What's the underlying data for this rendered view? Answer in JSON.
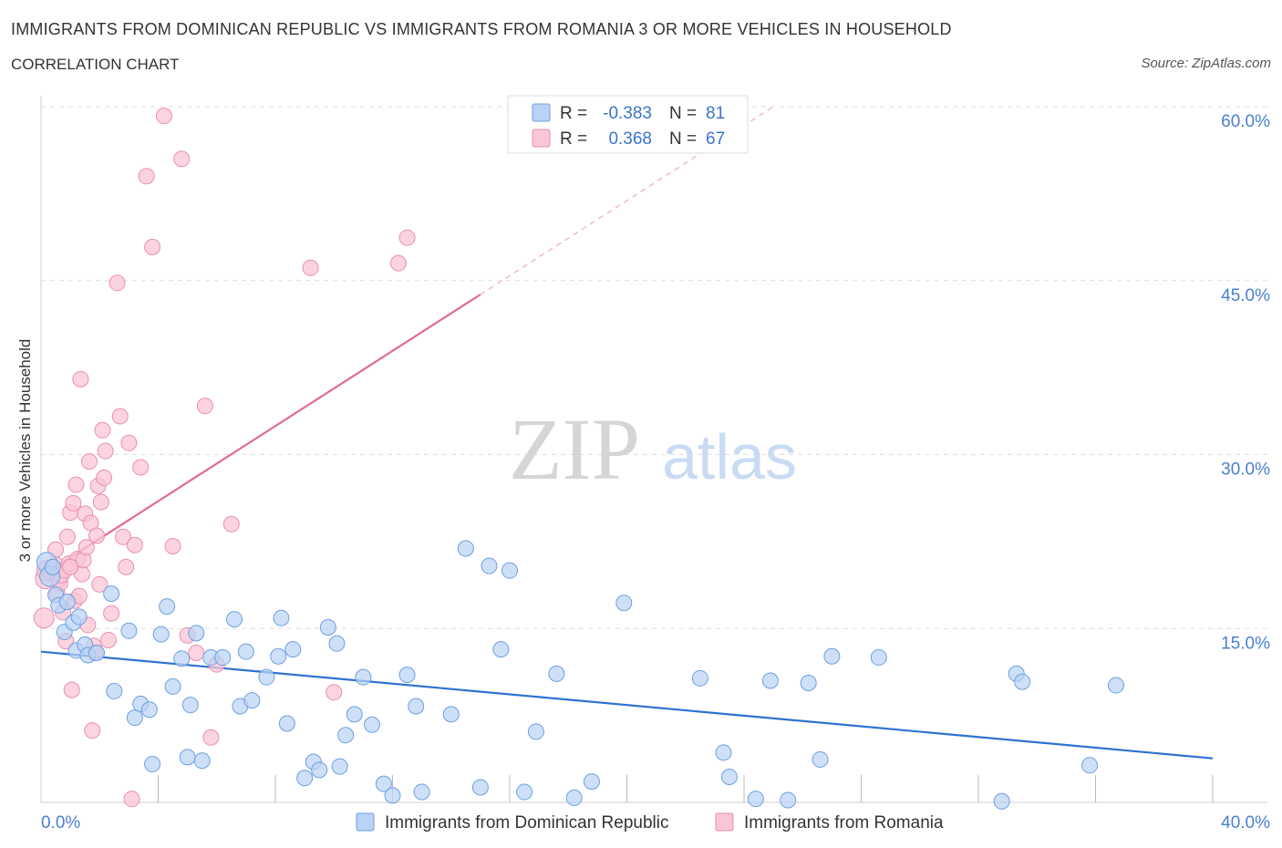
{
  "header": {
    "title": "IMMIGRANTS FROM DOMINICAN REPUBLIC VS IMMIGRANTS FROM ROMANIA 3 OR MORE VEHICLES IN HOUSEHOLD",
    "subtitle": "CORRELATION CHART",
    "source": "Source: ZipAtlas.com"
  },
  "watermark": {
    "zip": "ZIP",
    "atlas": "atlas"
  },
  "stats_legend": {
    "rows": [
      {
        "r_label": "R =",
        "r_value": "-0.383",
        "n_label": "N =",
        "n_value": "81"
      },
      {
        "r_label": "R =",
        "r_value": "0.368",
        "n_label": "N =",
        "n_value": "67"
      }
    ]
  },
  "colors": {
    "blue_fill": "#b8d3f5",
    "blue_stroke": "#6f9fe0",
    "blue_line": "#2f72d0",
    "pink_fill": "#f9c6d6",
    "pink_stroke": "#e98fb0",
    "pink_line": "#e06a94",
    "tick_label": "#4a7fd0",
    "grid": "#dddddd"
  },
  "chart_data": {
    "type": "scatter",
    "title": "IMMIGRANTS FROM DOMINICAN REPUBLIC VS IMMIGRANTS FROM ROMANIA 3 OR MORE VEHICLES IN HOUSEHOLD",
    "xlabel": "",
    "ylabel": "3 or more Vehicles in Household",
    "xlim": [
      0,
      40
    ],
    "ylim": [
      0,
      60
    ],
    "x_tick_labels": [
      "0.0%",
      "40.0%"
    ],
    "y_ticks": [
      15,
      30,
      45,
      60
    ],
    "y_tick_labels": [
      "15.0%",
      "30.0%",
      "45.0%",
      "60.0%"
    ],
    "grid": true,
    "legend_position": "bottom",
    "series": [
      {
        "name": "Immigrants from Dominican Republic",
        "color": "blue",
        "trend": {
          "x": [
            0,
            40
          ],
          "y": [
            13.0,
            3.8
          ]
        },
        "points": [
          [
            0.2,
            20.7
          ],
          [
            0.3,
            19.5
          ],
          [
            0.4,
            20.3
          ],
          [
            0.5,
            17.9
          ],
          [
            0.6,
            17.0
          ],
          [
            0.8,
            14.7
          ],
          [
            0.9,
            17.3
          ],
          [
            1.1,
            15.5
          ],
          [
            1.2,
            13.1
          ],
          [
            1.3,
            16.0
          ],
          [
            1.5,
            13.6
          ],
          [
            1.6,
            12.7
          ],
          [
            1.9,
            12.9
          ],
          [
            2.4,
            18.0
          ],
          [
            2.5,
            9.6
          ],
          [
            3.0,
            14.8
          ],
          [
            3.2,
            7.3
          ],
          [
            3.4,
            8.5
          ],
          [
            3.7,
            8.0
          ],
          [
            3.8,
            3.3
          ],
          [
            4.1,
            14.5
          ],
          [
            4.3,
            16.9
          ],
          [
            4.5,
            10.0
          ],
          [
            4.8,
            12.4
          ],
          [
            5.0,
            3.9
          ],
          [
            5.1,
            8.4
          ],
          [
            5.3,
            14.6
          ],
          [
            5.5,
            3.6
          ],
          [
            5.8,
            12.5
          ],
          [
            6.2,
            12.5
          ],
          [
            6.6,
            15.8
          ],
          [
            6.8,
            8.3
          ],
          [
            7.0,
            13.0
          ],
          [
            7.2,
            8.8
          ],
          [
            7.7,
            10.8
          ],
          [
            8.1,
            12.6
          ],
          [
            8.2,
            15.9
          ],
          [
            8.4,
            6.8
          ],
          [
            8.6,
            13.2
          ],
          [
            9.0,
            2.1
          ],
          [
            9.3,
            3.5
          ],
          [
            9.5,
            2.8
          ],
          [
            9.8,
            15.1
          ],
          [
            10.1,
            13.7
          ],
          [
            10.2,
            3.1
          ],
          [
            10.4,
            5.8
          ],
          [
            10.7,
            7.6
          ],
          [
            11.0,
            10.8
          ],
          [
            11.3,
            6.7
          ],
          [
            11.7,
            1.6
          ],
          [
            12.0,
            0.6
          ],
          [
            12.5,
            11.0
          ],
          [
            12.8,
            8.3
          ],
          [
            13.0,
            0.9
          ],
          [
            14.0,
            7.6
          ],
          [
            14.5,
            21.9
          ],
          [
            15.0,
            1.3
          ],
          [
            15.3,
            20.4
          ],
          [
            15.7,
            13.2
          ],
          [
            16.0,
            20.0
          ],
          [
            16.5,
            0.9
          ],
          [
            16.9,
            6.1
          ],
          [
            17.6,
            11.1
          ],
          [
            18.2,
            0.4
          ],
          [
            18.8,
            1.8
          ],
          [
            19.9,
            17.2
          ],
          [
            22.5,
            10.7
          ],
          [
            23.3,
            4.3
          ],
          [
            23.5,
            2.2
          ],
          [
            24.4,
            0.3
          ],
          [
            24.9,
            10.5
          ],
          [
            25.5,
            0.2
          ],
          [
            26.2,
            10.3
          ],
          [
            26.6,
            3.7
          ],
          [
            27.0,
            12.6
          ],
          [
            28.6,
            12.5
          ],
          [
            32.8,
            0.1
          ],
          [
            33.3,
            11.1
          ],
          [
            33.5,
            10.4
          ],
          [
            35.8,
            3.2
          ],
          [
            36.7,
            10.1
          ]
        ]
      },
      {
        "name": "Immigrants from Romania",
        "color": "pink",
        "trend": {
          "x": [
            0,
            15
          ],
          "y": [
            19.5,
            43.8
          ]
        },
        "trend_dashed": {
          "x": [
            15,
            25
          ],
          "y": [
            43.8,
            60
          ]
        },
        "points": [
          [
            0.1,
            15.9
          ],
          [
            0.15,
            19.3
          ],
          [
            0.2,
            20.0
          ],
          [
            0.3,
            19.9
          ],
          [
            0.4,
            20.2
          ],
          [
            0.5,
            20.5
          ],
          [
            0.5,
            21.8
          ],
          [
            0.55,
            18.0
          ],
          [
            0.6,
            19.2
          ],
          [
            0.65,
            18.9
          ],
          [
            0.7,
            19.6
          ],
          [
            0.75,
            16.4
          ],
          [
            0.8,
            20.0
          ],
          [
            0.85,
            13.9
          ],
          [
            0.9,
            22.9
          ],
          [
            0.95,
            20.6
          ],
          [
            1.0,
            25.0
          ],
          [
            1.05,
            9.7
          ],
          [
            1.1,
            25.8
          ],
          [
            1.15,
            17.4
          ],
          [
            1.2,
            27.4
          ],
          [
            1.25,
            21.0
          ],
          [
            1.3,
            17.8
          ],
          [
            1.35,
            36.5
          ],
          [
            1.4,
            19.7
          ],
          [
            1.45,
            20.9
          ],
          [
            1.5,
            24.9
          ],
          [
            1.55,
            22.0
          ],
          [
            1.6,
            15.3
          ],
          [
            1.65,
            29.4
          ],
          [
            1.7,
            24.1
          ],
          [
            1.75,
            6.2
          ],
          [
            1.8,
            13.5
          ],
          [
            1.85,
            12.9
          ],
          [
            1.9,
            23.0
          ],
          [
            1.95,
            27.3
          ],
          [
            2.0,
            18.8
          ],
          [
            2.05,
            25.9
          ],
          [
            2.1,
            32.1
          ],
          [
            2.15,
            28.0
          ],
          [
            2.2,
            30.3
          ],
          [
            2.4,
            16.3
          ],
          [
            2.6,
            44.8
          ],
          [
            2.7,
            33.3
          ],
          [
            2.8,
            22.9
          ],
          [
            2.9,
            20.3
          ],
          [
            3.0,
            31.0
          ],
          [
            3.1,
            0.3
          ],
          [
            3.2,
            22.2
          ],
          [
            3.4,
            28.9
          ],
          [
            3.6,
            54.0
          ],
          [
            3.8,
            47.9
          ],
          [
            4.2,
            59.2
          ],
          [
            4.5,
            22.1
          ],
          [
            4.8,
            55.5
          ],
          [
            5.0,
            14.4
          ],
          [
            5.3,
            12.9
          ],
          [
            5.6,
            34.2
          ],
          [
            5.8,
            5.6
          ],
          [
            6.0,
            11.9
          ],
          [
            6.5,
            24.0
          ],
          [
            9.2,
            46.1
          ],
          [
            10.0,
            9.5
          ],
          [
            12.2,
            46.5
          ],
          [
            12.5,
            48.7
          ],
          [
            2.3,
            14.0
          ],
          [
            1.0,
            20.3
          ]
        ]
      }
    ]
  },
  "bottom_legend": {
    "items": [
      {
        "label": "Immigrants from Dominican Republic"
      },
      {
        "label": "Immigrants from Romania"
      }
    ]
  }
}
